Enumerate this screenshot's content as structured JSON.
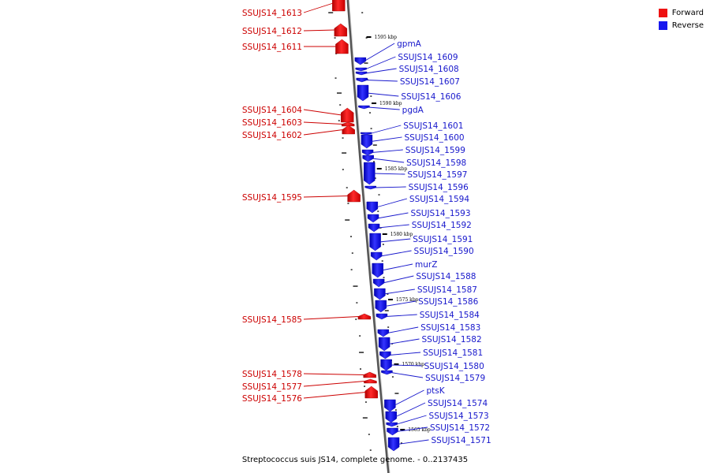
{
  "legend": {
    "forward_label": "Forward",
    "reverse_label": "Reverse",
    "forward_color": "#ee1111",
    "reverse_color": "#1818ee"
  },
  "caption": "Streptococcus suis JS14, complete genome. - 0..2137435",
  "kbp_markers": [
    "1595 kbp",
    "1590 kbp",
    "1585 kbp",
    "1580 kbp",
    "1575 kbp",
    "1570 kbp",
    "1565 kbp"
  ],
  "forward_genes": [
    "SSUJS14_1613",
    "SSUJS14_1612",
    "SSUJS14_1611",
    "SSUJS14_1604",
    "SSUJS14_1603",
    "SSUJS14_1602",
    "SSUJS14_1595",
    "SSUJS14_1585",
    "SSUJS14_1578",
    "SSUJS14_1577",
    "SSUJS14_1576"
  ],
  "reverse_genes": [
    "gpmA",
    "SSUJS14_1609",
    "SSUJS14_1608",
    "SSUJS14_1607",
    "SSUJS14_1606",
    "pgdA",
    "SSUJS14_1601",
    "SSUJS14_1600",
    "SSUJS14_1599",
    "SSUJS14_1598",
    "SSUJS14_1597",
    "SSUJS14_1596",
    "SSUJS14_1594",
    "SSUJS14_1593",
    "SSUJS14_1592",
    "SSUJS14_1591",
    "SSUJS14_1590",
    "murZ",
    "SSUJS14_1588",
    "SSUJS14_1587",
    "SSUJS14_1586",
    "SSUJS14_1584",
    "SSUJS14_1583",
    "SSUJS14_1582",
    "SSUJS14_1581",
    "SSUJS14_1580",
    "SSUJS14_1579",
    "ptsK",
    "SSUJS14_1574",
    "SSUJS14_1573",
    "SSUJS14_1572",
    "SSUJS14_1571"
  ]
}
